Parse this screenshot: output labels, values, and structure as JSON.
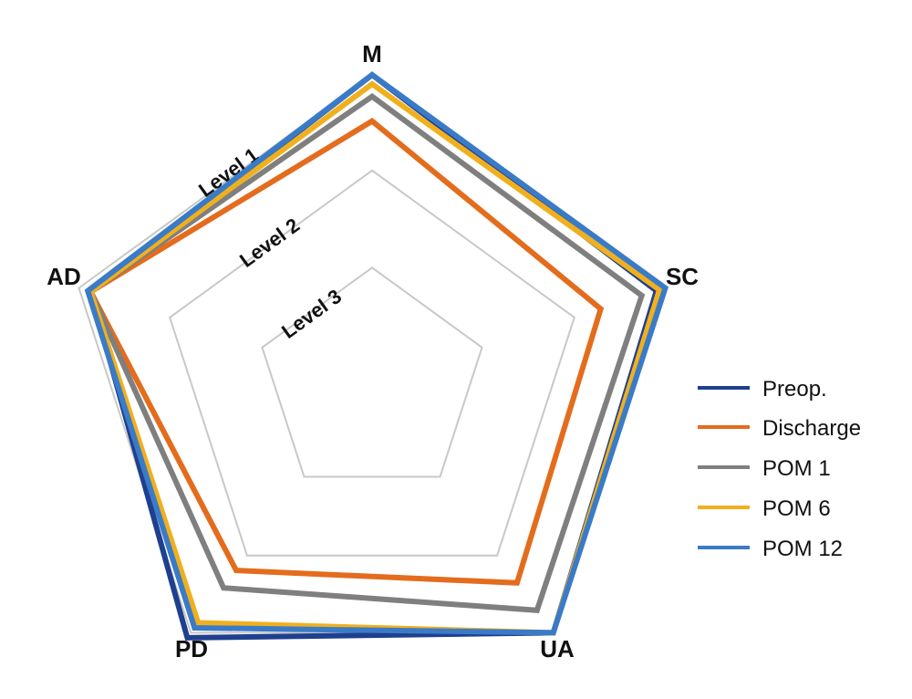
{
  "chart_data": {
    "type": "radar",
    "axes": [
      "M",
      "SC",
      "UA",
      "PD",
      "AD"
    ],
    "levels": [
      "Level 1",
      "Level 2",
      "Level 3"
    ],
    "grid": true,
    "legend_position": "right",
    "series": [
      {
        "name": "Preop.",
        "color": "#1f3f8f",
        "values": [
          1.0,
          0.97,
          1.0,
          1.02,
          0.96
        ]
      },
      {
        "name": "Discharge",
        "color": "#e36c1d",
        "values": [
          0.85,
          0.78,
          0.8,
          0.75,
          0.96
        ]
      },
      {
        "name": "POM 1",
        "color": "#7f7f7f",
        "values": [
          0.93,
          0.92,
          0.91,
          0.82,
          0.96
        ]
      },
      {
        "name": "POM 6",
        "color": "#f0b01e",
        "values": [
          0.97,
          0.98,
          1.0,
          0.96,
          0.96
        ]
      },
      {
        "name": "POM 12",
        "color": "#3a7bc8",
        "values": [
          1.0,
          1.0,
          1.0,
          0.98,
          0.97
        ]
      }
    ]
  }
}
